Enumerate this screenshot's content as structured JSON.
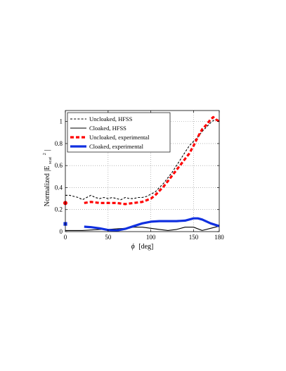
{
  "chart_data": {
    "type": "line",
    "xlabel_symbol": "ϕ",
    "xlabel_unit": "[deg]",
    "ylabel_main": "Normalized |E",
    "ylabel_sub": "scat",
    "ylabel_sup": "2",
    "ylabel_end": "|",
    "xlim": [
      0,
      180
    ],
    "ylim": [
      0,
      1.1
    ],
    "xticks": [
      "0",
      "50",
      "100",
      "150",
      "180"
    ],
    "yticks": [
      "0",
      "0.2",
      "0.4",
      "0.6",
      "0.8",
      "1"
    ],
    "grid": true,
    "legend_position": "top-left",
    "series": [
      {
        "name": "Uncloaked, HFSS",
        "color": "#000000",
        "style": "dashed",
        "x": [
          0,
          5,
          10,
          15,
          20,
          25,
          30,
          35,
          40,
          45,
          50,
          55,
          60,
          65,
          70,
          75,
          80,
          85,
          90,
          95,
          100,
          105,
          110,
          115,
          120,
          125,
          130,
          135,
          140,
          145,
          150,
          155,
          160,
          165,
          170,
          175,
          180
        ],
        "y": [
          0.33,
          0.33,
          0.32,
          0.31,
          0.29,
          0.31,
          0.33,
          0.31,
          0.3,
          0.31,
          0.3,
          0.31,
          0.3,
          0.29,
          0.31,
          0.3,
          0.3,
          0.31,
          0.31,
          0.32,
          0.34,
          0.36,
          0.4,
          0.44,
          0.49,
          0.54,
          0.6,
          0.66,
          0.72,
          0.78,
          0.82,
          0.86,
          0.91,
          0.95,
          0.99,
          1.02,
          1.0
        ]
      },
      {
        "name": "Cloaked, HFSS",
        "color": "#000000",
        "style": "solid",
        "x": [
          0,
          10,
          20,
          30,
          40,
          50,
          60,
          70,
          80,
          90,
          100,
          110,
          120,
          130,
          140,
          150,
          160,
          170,
          180
        ],
        "y": [
          0.01,
          0.01,
          0.01,
          0.015,
          0.02,
          0.02,
          0.025,
          0.03,
          0.04,
          0.04,
          0.03,
          0.02,
          0.01,
          0.02,
          0.04,
          0.04,
          0.01,
          0.03,
          0.05
        ]
      },
      {
        "name": "Uncloaked, experimental",
        "color": "#ff0000",
        "style": "dashed-thick",
        "point": {
          "x": 0,
          "y": 0.26
        },
        "x": [
          22,
          30,
          40,
          50,
          60,
          70,
          80,
          90,
          100,
          105,
          110,
          115,
          120,
          125,
          130,
          135,
          140,
          145,
          150,
          155,
          160,
          165,
          170,
          173,
          176,
          180
        ],
        "y": [
          0.26,
          0.27,
          0.26,
          0.26,
          0.26,
          0.25,
          0.26,
          0.27,
          0.3,
          0.33,
          0.37,
          0.41,
          0.46,
          0.51,
          0.56,
          0.61,
          0.66,
          0.71,
          0.78,
          0.86,
          0.93,
          0.97,
          1.02,
          1.04,
          1.02,
          1.0
        ]
      },
      {
        "name": "Cloaked, experimental",
        "color": "#1030e0",
        "style": "solid-thick",
        "point": {
          "x": 0,
          "y": 0.07
        },
        "x": [
          22,
          30,
          40,
          50,
          60,
          70,
          80,
          90,
          100,
          110,
          120,
          130,
          140,
          145,
          150,
          155,
          160,
          170,
          180
        ],
        "y": [
          0.045,
          0.04,
          0.03,
          0.015,
          0.01,
          0.025,
          0.05,
          0.075,
          0.09,
          0.095,
          0.095,
          0.095,
          0.1,
          0.11,
          0.12,
          0.12,
          0.11,
          0.075,
          0.05
        ]
      }
    ]
  }
}
